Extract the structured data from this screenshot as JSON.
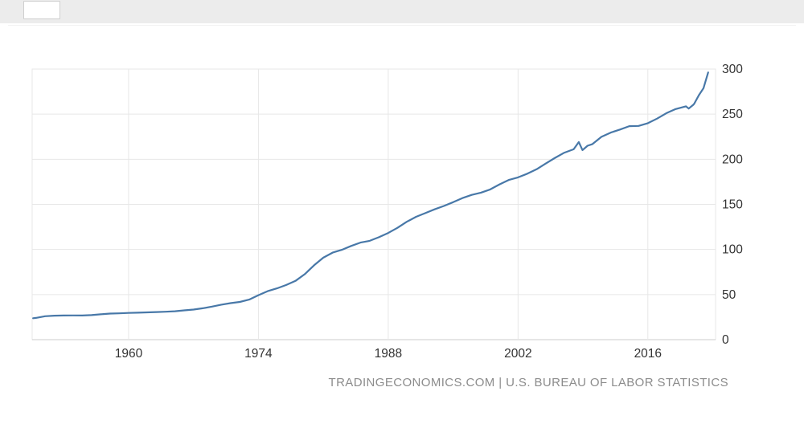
{
  "topbar": {
    "box_label": ""
  },
  "chart_data": {
    "type": "line",
    "title": "",
    "xlabel": "",
    "ylabel": "",
    "source_text": "TRADINGECONOMICS.COM | U.S. BUREAU OF LABOR STATISTICS",
    "x_ticks": [
      1960,
      1974,
      1988,
      2002,
      2016
    ],
    "y_ticks": [
      0,
      50,
      100,
      150,
      200,
      250,
      300
    ],
    "x_range": [
      1949.6,
      2023.3
    ],
    "y_range": [
      0,
      300
    ],
    "grid": true,
    "legend": "none",
    "line_color": "#4878a8",
    "grid_color": "#e7e7e7",
    "axis_color": "#cccccc",
    "tick_label_color": "#333333",
    "series": [
      {
        "points": [
          [
            1949.7,
            23.8
          ],
          [
            1950,
            24.1
          ],
          [
            1951,
            26.0
          ],
          [
            1952,
            26.6
          ],
          [
            1953,
            26.8
          ],
          [
            1954,
            26.9
          ],
          [
            1955,
            26.8
          ],
          [
            1956,
            27.2
          ],
          [
            1957,
            28.1
          ],
          [
            1958,
            28.9
          ],
          [
            1959,
            29.2
          ],
          [
            1960,
            29.6
          ],
          [
            1961,
            29.9
          ],
          [
            1962,
            30.3
          ],
          [
            1963,
            30.6
          ],
          [
            1964,
            31.0
          ],
          [
            1965,
            31.5
          ],
          [
            1966,
            32.5
          ],
          [
            1967,
            33.4
          ],
          [
            1968,
            34.8
          ],
          [
            1969,
            36.7
          ],
          [
            1970,
            38.8
          ],
          [
            1971,
            40.5
          ],
          [
            1972,
            41.8
          ],
          [
            1973,
            44.4
          ],
          [
            1974,
            49.3
          ],
          [
            1975,
            53.8
          ],
          [
            1976,
            56.9
          ],
          [
            1977,
            60.6
          ],
          [
            1978,
            65.2
          ],
          [
            1979,
            72.6
          ],
          [
            1980,
            82.4
          ],
          [
            1981,
            90.9
          ],
          [
            1982,
            96.5
          ],
          [
            1983,
            99.6
          ],
          [
            1984,
            103.9
          ],
          [
            1985,
            107.6
          ],
          [
            1986,
            109.6
          ],
          [
            1987,
            113.6
          ],
          [
            1988,
            118.3
          ],
          [
            1989,
            124.0
          ],
          [
            1990,
            130.7
          ],
          [
            1991,
            136.2
          ],
          [
            1992,
            140.3
          ],
          [
            1993,
            144.5
          ],
          [
            1994,
            148.2
          ],
          [
            1995,
            152.4
          ],
          [
            1996,
            156.9
          ],
          [
            1997,
            160.5
          ],
          [
            1998,
            163.0
          ],
          [
            1999,
            166.6
          ],
          [
            2000,
            172.2
          ],
          [
            2001,
            177.1
          ],
          [
            2002,
            179.9
          ],
          [
            2003,
            184.0
          ],
          [
            2004,
            188.9
          ],
          [
            2005,
            195.3
          ],
          [
            2006,
            201.6
          ],
          [
            2007,
            207.3
          ],
          [
            2008,
            211.1
          ],
          [
            2008.55,
            219.1
          ],
          [
            2008.95,
            210.2
          ],
          [
            2009.5,
            215.0
          ],
          [
            2010,
            216.7
          ],
          [
            2011,
            224.9
          ],
          [
            2012,
            229.6
          ],
          [
            2013,
            233.0
          ],
          [
            2014,
            236.7
          ],
          [
            2015,
            237.0
          ],
          [
            2016,
            240.0
          ],
          [
            2017,
            245.1
          ],
          [
            2018,
            251.1
          ],
          [
            2019,
            255.7
          ],
          [
            2020.1,
            258.7
          ],
          [
            2020.4,
            256.2
          ],
          [
            2020.9,
            260.4
          ],
          [
            2021.0,
            261.6
          ],
          [
            2021.5,
            271.0
          ],
          [
            2022.0,
            278.8
          ],
          [
            2022.25,
            287.5
          ],
          [
            2022.5,
            296.3
          ]
        ]
      }
    ]
  }
}
